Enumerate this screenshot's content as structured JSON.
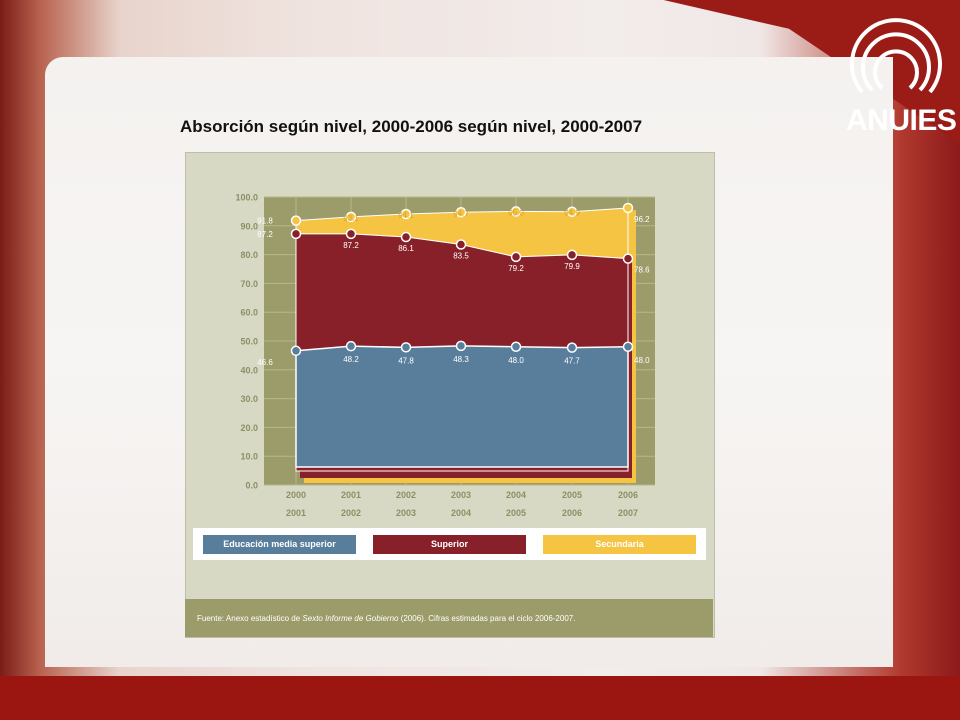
{
  "slide": {
    "title": "Absorción según nivel, 2000-2006 según nivel, 2000-2007",
    "logo_text": "ANUIES",
    "source": {
      "prefix": "Fuente: Anexo estadístico de ",
      "italic": "Sexto Informe de Gobierno",
      "suffix": " (2006). Cifras estimadas para el ciclo 2006-2007."
    }
  },
  "colors": {
    "media_superior": "#587e9c",
    "superior": "#88202a",
    "secundaria": "#f5c443",
    "plot_bg": "#9b9c6a",
    "panel_bg": "#d7d9c4"
  },
  "chart_data": {
    "type": "area",
    "title": "",
    "xlabel": "",
    "ylabel": "",
    "ylim": [
      0,
      100
    ],
    "yticks": [
      "0.0",
      "10.0",
      "20.0",
      "30.0",
      "40.0",
      "50.0",
      "60.0",
      "70.0",
      "80.0",
      "90.0",
      "100.0"
    ],
    "categories": [
      "2000 2001",
      "2001 2002",
      "2002 2003",
      "2003 2004",
      "2004 2005",
      "2005 2006",
      "2006 2007"
    ],
    "category_lines": [
      [
        "2000",
        "2001"
      ],
      [
        "2001",
        "2002"
      ],
      [
        "2002",
        "2003"
      ],
      [
        "2003",
        "2004"
      ],
      [
        "2004",
        "2005"
      ],
      [
        "2005",
        "2006"
      ],
      [
        "2006",
        "2007"
      ]
    ],
    "grid": true,
    "legend": "bottom",
    "series": [
      {
        "name": "Secundaria",
        "key": "secundaria",
        "values": [
          91.8,
          93.1,
          94.1,
          94.7,
          95.0,
          94.9,
          96.2
        ]
      },
      {
        "name": "Superior",
        "key": "superior",
        "values": [
          87.2,
          87.2,
          86.1,
          83.5,
          79.2,
          79.9,
          78.6
        ]
      },
      {
        "name": "Educación media superior",
        "key": "media_superior",
        "values": [
          46.6,
          48.2,
          47.8,
          48.3,
          48.0,
          47.7,
          48.0
        ]
      }
    ]
  },
  "legend": [
    {
      "label": "Educación media superior",
      "color": "#587e9c"
    },
    {
      "label": "Superior",
      "color": "#88202a"
    },
    {
      "label": "Secundaria",
      "color": "#f5c443"
    }
  ]
}
